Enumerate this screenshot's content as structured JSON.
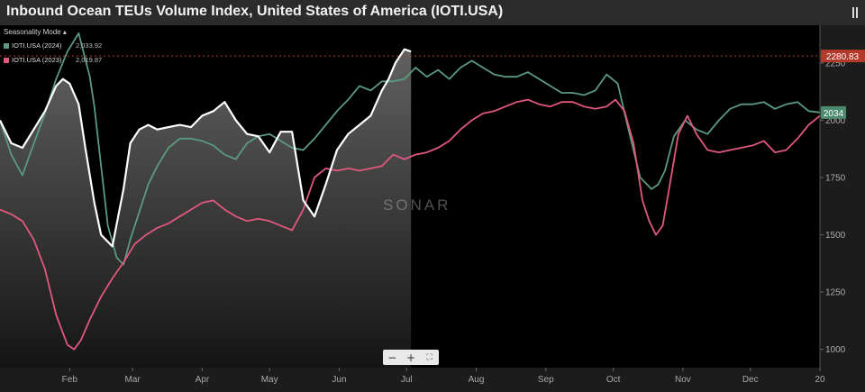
{
  "title": "Inbound Ocean TEUs Volume Index, United States of America (IOTI.USA)",
  "seasonality_label": "Seasonality Mode",
  "watermark": "SONAR",
  "zoom_controls": {
    "minus": "−",
    "plus": "+",
    "fit": "⛶"
  },
  "colors": {
    "series_2024": "#5b9a7f",
    "series_2023": "#e0587e",
    "series_2025": "#ffffff",
    "ref_line": "#b33a2a",
    "background": "#000000"
  },
  "chart_data": {
    "type": "line",
    "title": "Inbound Ocean TEUs Volume Index, United States of America (IOTI.USA)",
    "xlabel": "",
    "ylabel": "",
    "ylim": [
      920,
      2415
    ],
    "x_tick_labels": [
      "Feb",
      "Mar",
      "Apr",
      "May",
      "Jun",
      "Jul",
      "Aug",
      "Sep",
      "Oct",
      "Nov",
      "Dec",
      "20"
    ],
    "x_tick_days": [
      31,
      59,
      90,
      120,
      151,
      181,
      212,
      243,
      273,
      304,
      334,
      365
    ],
    "y_ticks": [
      1000,
      1250,
      1500,
      1750,
      2000,
      2250
    ],
    "grid": false,
    "legend_position": "top-left",
    "reference_line": {
      "label": "2280.83",
      "value": 2280.83
    },
    "end_label": {
      "label": "2034",
      "value": 2034
    },
    "series": [
      {
        "name": "IOTI.USA (2024)",
        "legend_value": "2,033.92",
        "color": "#5b9a7f",
        "x": [
          0,
          5,
          10,
          14,
          20,
          25,
          30,
          35,
          40,
          42,
          45,
          48,
          52,
          55,
          58,
          62,
          66,
          70,
          75,
          80,
          85,
          90,
          95,
          100,
          105,
          110,
          115,
          120,
          125,
          130,
          135,
          140,
          145,
          150,
          155,
          160,
          165,
          170,
          175,
          180,
          185,
          190,
          195,
          200,
          205,
          210,
          215,
          220,
          225,
          230,
          235,
          240,
          245,
          250,
          255,
          260,
          265,
          270,
          275,
          280,
          285,
          290,
          293,
          296,
          300,
          305,
          310,
          315,
          320,
          325,
          330,
          335,
          340,
          345,
          350,
          355,
          360,
          365
        ],
        "y": [
          2000,
          1850,
          1760,
          1870,
          2030,
          2180,
          2300,
          2380,
          2190,
          2060,
          1800,
          1540,
          1400,
          1370,
          1480,
          1600,
          1720,
          1800,
          1880,
          1920,
          1920,
          1910,
          1890,
          1850,
          1830,
          1900,
          1930,
          1940,
          1910,
          1880,
          1870,
          1920,
          1980,
          2040,
          2090,
          2150,
          2130,
          2170,
          2170,
          2180,
          2230,
          2190,
          2220,
          2180,
          2230,
          2260,
          2230,
          2200,
          2190,
          2190,
          2210,
          2180,
          2150,
          2120,
          2120,
          2110,
          2130,
          2200,
          2160,
          1950,
          1750,
          1700,
          1720,
          1780,
          1930,
          2000,
          1960,
          1940,
          2000,
          2050,
          2070,
          2070,
          2080,
          2050,
          2070,
          2080,
          2040,
          2034
        ]
      },
      {
        "name": "IOTI.USA (2023)",
        "legend_value": "2,019.87",
        "color": "#e0587e",
        "x": [
          0,
          5,
          10,
          15,
          20,
          25,
          30,
          33,
          36,
          40,
          45,
          50,
          55,
          60,
          65,
          70,
          75,
          80,
          85,
          90,
          95,
          100,
          105,
          110,
          115,
          120,
          125,
          130,
          135,
          140,
          145,
          150,
          155,
          160,
          165,
          170,
          175,
          180,
          185,
          190,
          195,
          200,
          205,
          210,
          215,
          220,
          225,
          230,
          235,
          240,
          245,
          250,
          255,
          260,
          265,
          270,
          274,
          278,
          282,
          286,
          289,
          292,
          295,
          298,
          302,
          306,
          310,
          315,
          320,
          325,
          330,
          335,
          340,
          345,
          350,
          355,
          360,
          365
        ],
        "y": [
          1610,
          1590,
          1560,
          1480,
          1350,
          1150,
          1020,
          1000,
          1040,
          1130,
          1230,
          1310,
          1380,
          1460,
          1500,
          1530,
          1550,
          1580,
          1610,
          1640,
          1650,
          1610,
          1580,
          1560,
          1570,
          1560,
          1540,
          1520,
          1610,
          1750,
          1790,
          1780,
          1790,
          1780,
          1790,
          1800,
          1850,
          1830,
          1850,
          1860,
          1880,
          1910,
          1960,
          2000,
          2030,
          2040,
          2060,
          2080,
          2090,
          2070,
          2060,
          2080,
          2080,
          2060,
          2050,
          2060,
          2090,
          2040,
          1900,
          1650,
          1560,
          1500,
          1540,
          1710,
          1940,
          2020,
          1940,
          1870,
          1860,
          1870,
          1880,
          1890,
          1910,
          1860,
          1870,
          1920,
          1980,
          2020
        ]
      },
      {
        "name": "",
        "color": "#ffffff",
        "x": [
          0,
          5,
          10,
          15,
          20,
          25,
          28,
          31,
          35,
          38,
          42,
          45,
          50,
          55,
          58,
          62,
          66,
          70,
          75,
          80,
          85,
          90,
          95,
          100,
          105,
          110,
          115,
          120,
          125,
          130,
          135,
          140,
          145,
          150,
          155,
          160,
          165,
          170,
          173,
          176,
          180,
          183
        ],
        "y": [
          2000,
          1900,
          1880,
          1960,
          2040,
          2150,
          2180,
          2160,
          2070,
          1880,
          1640,
          1500,
          1450,
          1700,
          1900,
          1960,
          1980,
          1960,
          1970,
          1980,
          1970,
          2020,
          2040,
          2080,
          2000,
          1940,
          1930,
          1860,
          1950,
          1950,
          1650,
          1580,
          1720,
          1870,
          1940,
          1980,
          2020,
          2130,
          2180,
          2250,
          2310,
          2300
        ]
      }
    ]
  }
}
